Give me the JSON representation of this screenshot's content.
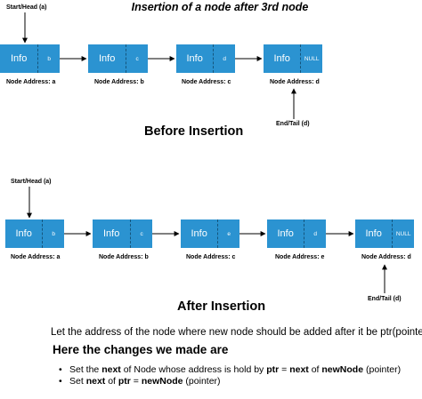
{
  "title": "Insertion of a node after 3rd node",
  "before": {
    "start_label": "Start/Head (a)",
    "end_label": "End/Tail (d)",
    "section_title": "Before Insertion",
    "nodes": [
      {
        "info": "Info",
        "next": "b",
        "address": "Node Address: a"
      },
      {
        "info": "Info",
        "next": "c",
        "address": "Node Address: b"
      },
      {
        "info": "Info",
        "next": "d",
        "address": "Node Address: c"
      },
      {
        "info": "Info",
        "next": "NULL",
        "address": "Node Address: d"
      }
    ]
  },
  "after": {
    "start_label": "Start/Head (a)",
    "end_label": "End/Tail (d)",
    "section_title": "After Insertion",
    "nodes": [
      {
        "info": "Info",
        "next": "b",
        "address": "Node Address: a"
      },
      {
        "info": "Info",
        "next": "c",
        "address": "Node Address: b"
      },
      {
        "info": "Info",
        "next": "e",
        "address": "Node Address: c"
      },
      {
        "info": "Info",
        "next": "d",
        "address": "Node Address: e"
      },
      {
        "info": "Info",
        "next": "NULL",
        "address": "Node Address: d"
      }
    ]
  },
  "explanation": "Let the address of the node where new node should be added after it be ptr(pointer).",
  "changes_title": "Here the changes we made are",
  "bullets": [
    {
      "parts": [
        "Set the ",
        "next",
        " of Node whose address is hold by ",
        "ptr",
        " = ",
        "next",
        " of ",
        "newNode",
        " (pointer)"
      ]
    },
    {
      "parts": [
        "Set ",
        "next",
        " of ",
        "ptr",
        " = ",
        "newNode",
        " (pointer)"
      ]
    }
  ],
  "colors": {
    "node_fill": "#2b93d1",
    "node_text": "#ffffff",
    "divider": "#15567d"
  }
}
